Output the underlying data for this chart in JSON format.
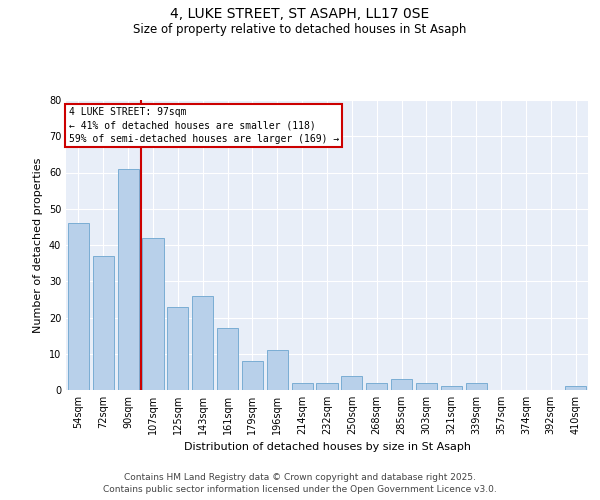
{
  "title": "4, LUKE STREET, ST ASAPH, LL17 0SE",
  "subtitle": "Size of property relative to detached houses in St Asaph",
  "xlabel": "Distribution of detached houses by size in St Asaph",
  "ylabel": "Number of detached properties",
  "categories": [
    "54sqm",
    "72sqm",
    "90sqm",
    "107sqm",
    "125sqm",
    "143sqm",
    "161sqm",
    "179sqm",
    "196sqm",
    "214sqm",
    "232sqm",
    "250sqm",
    "268sqm",
    "285sqm",
    "303sqm",
    "321sqm",
    "339sqm",
    "357sqm",
    "374sqm",
    "392sqm",
    "410sqm"
  ],
  "values": [
    46,
    37,
    61,
    42,
    23,
    26,
    17,
    8,
    11,
    2,
    2,
    4,
    2,
    3,
    2,
    1,
    2,
    0,
    0,
    0,
    1
  ],
  "bar_color": "#b8d0ea",
  "bar_edge_color": "#7aadd4",
  "vline_color": "#cc0000",
  "annotation_text": "4 LUKE STREET: 97sqm\n← 41% of detached houses are smaller (118)\n59% of semi-detached houses are larger (169) →",
  "annotation_box_color": "#cc0000",
  "ylim": [
    0,
    80
  ],
  "yticks": [
    0,
    10,
    20,
    30,
    40,
    50,
    60,
    70,
    80
  ],
  "background_color": "#e8eef8",
  "grid_color": "#ffffff",
  "footer_line1": "Contains HM Land Registry data © Crown copyright and database right 2025.",
  "footer_line2": "Contains public sector information licensed under the Open Government Licence v3.0."
}
